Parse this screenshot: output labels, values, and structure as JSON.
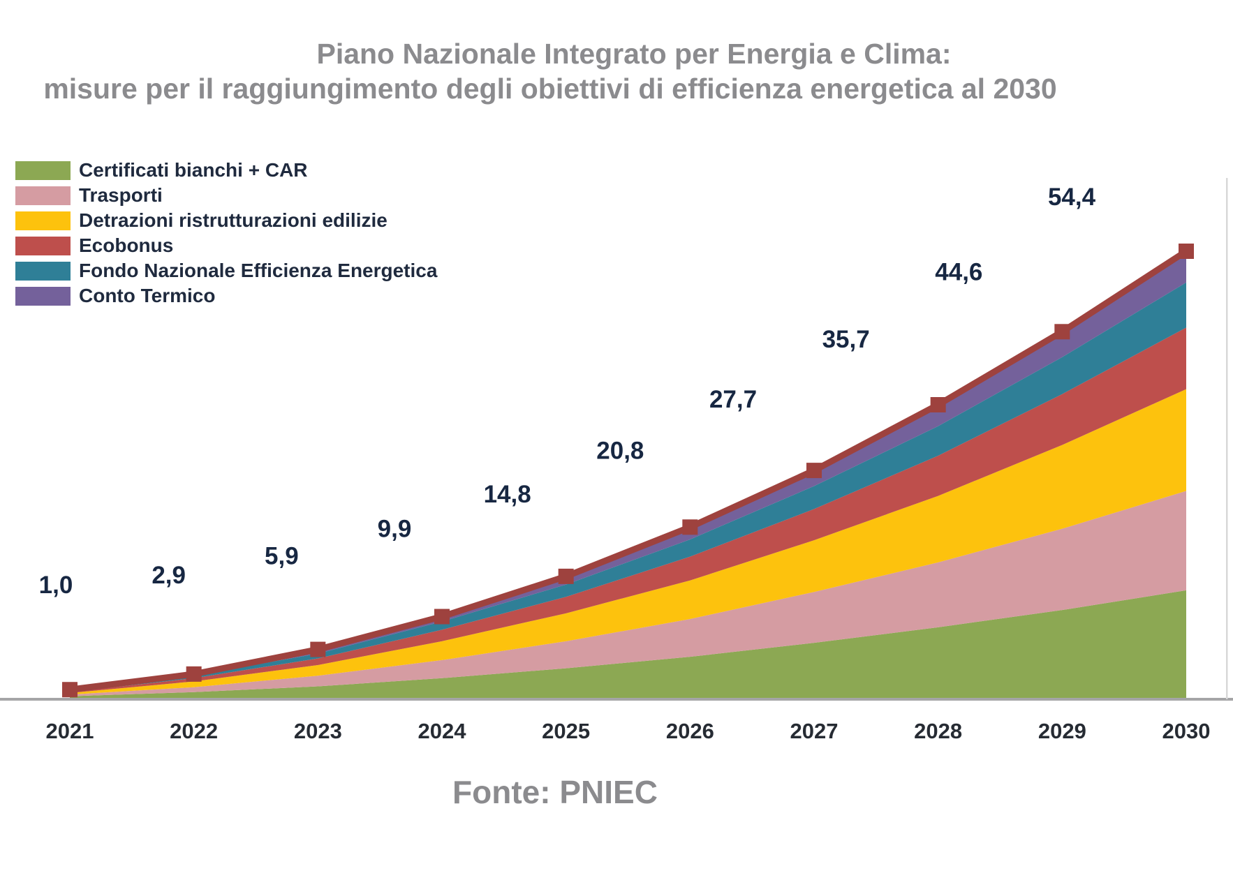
{
  "title": {
    "line1": "Piano Nazionale Integrato per Energia e Clima:",
    "line2": "misure per il raggiungimento degli obiettivi di efficienza energetica al 2030"
  },
  "source": {
    "text": "Fonte: PNIEC"
  },
  "colors": {
    "title_gray": "#8B8B8E",
    "label_navy": "#172742",
    "year_label": "#262B33",
    "axis_line": "#A5A5A7",
    "total_line": "#9E423E"
  },
  "chart_data": {
    "type": "area",
    "stacked": true,
    "title": "Piano Nazionale Integrato per Energia e Clima: misure per il raggiungimento degli obiettivi di efficienza energetica al 2030",
    "xlabel": "",
    "ylabel": "",
    "ylim": [
      0,
      55
    ],
    "grid": false,
    "legend_position": "top-left",
    "categories": [
      "2021",
      "2022",
      "2023",
      "2024",
      "2025",
      "2026",
      "2027",
      "2028",
      "2029",
      "2030"
    ],
    "series": [
      {
        "name": "Certificati bianchi + CAR",
        "color": "#8CA853",
        "values": [
          0.2,
          0.7,
          1.4,
          2.4,
          3.6,
          5.0,
          6.7,
          8.6,
          10.7,
          13.1
        ]
      },
      {
        "name": "Trasporti",
        "color": "#D59CA2",
        "values": [
          0.2,
          0.6,
          1.3,
          2.2,
          3.3,
          4.6,
          6.2,
          7.9,
          9.9,
          12.1
        ]
      },
      {
        "name": "Detrazioni ristrutturazioni edilizie",
        "color": "#FDC20D",
        "values": [
          0.2,
          0.7,
          1.3,
          2.3,
          3.4,
          4.7,
          6.3,
          8.1,
          10.2,
          12.4
        ]
      },
      {
        "name": "Ecobonus",
        "color": "#BE4F4C",
        "values": [
          0.1,
          0.4,
          0.8,
          1.4,
          2.0,
          2.9,
          3.8,
          4.9,
          6.2,
          7.5
        ]
      },
      {
        "name": "Fondo Nazionale Efficienza Energetica",
        "color": "#2F7F97",
        "values": [
          0.1,
          0.3,
          0.6,
          1.0,
          1.5,
          2.1,
          2.8,
          3.6,
          4.5,
          5.5
        ]
      },
      {
        "name": "Conto Termico",
        "color": "#74619B",
        "values": [
          0.1,
          0.2,
          0.4,
          0.7,
          1.0,
          1.5,
          1.9,
          2.5,
          3.1,
          3.8
        ]
      }
    ],
    "totals": [
      1.0,
      2.9,
      5.9,
      9.9,
      14.8,
      20.8,
      27.7,
      35.7,
      44.6,
      54.4
    ],
    "total_labels": [
      "1,0",
      "2,9",
      "5,9",
      "9,9",
      "14,8",
      "20,8",
      "27,7",
      "35,7",
      "44,6",
      "54,4"
    ],
    "total_line": {
      "color": "#9E423E",
      "marker": "square"
    }
  }
}
